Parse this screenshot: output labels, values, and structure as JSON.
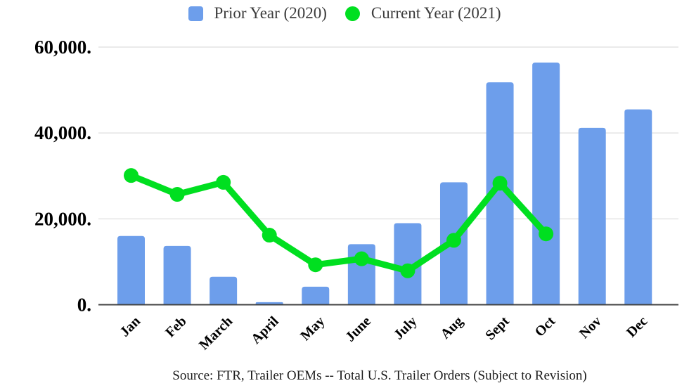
{
  "chart_data": {
    "type": "combo-bar-line",
    "title": "",
    "xlabel": "",
    "ylabel": "",
    "categories": [
      "Jan",
      "Feb",
      "March",
      "April",
      "May",
      "June",
      "July",
      "Aug",
      "Sept",
      "Oct",
      "Nov",
      "Dec"
    ],
    "series": [
      {
        "name": "Prior Year (2020)",
        "type": "bar",
        "color": "#6d9eeb",
        "values": [
          16000,
          13700,
          6500,
          600,
          4200,
          14100,
          19000,
          28500,
          51800,
          56400,
          41200,
          45500
        ]
      },
      {
        "name": "Current Year (2021)",
        "type": "line",
        "color": "#00df20",
        "values": [
          30100,
          25700,
          28500,
          16200,
          9300,
          10700,
          7900,
          15000,
          28300,
          16500,
          null,
          null
        ]
      }
    ],
    "ylim": [
      0,
      60000
    ],
    "yticks": {
      "values": [
        0,
        20000,
        40000,
        60000
      ],
      "labels": [
        "0.",
        "20,000.",
        "40,000.",
        "60,000."
      ]
    },
    "grid": true,
    "legend_position": "top",
    "colors": {
      "gridline": "#d5d5d5",
      "axis": "#424242",
      "tick_text": "#000000"
    },
    "source_note": "Source: FTR, Trailer OEMs -- Total U.S. Trailer Orders (Subject to Revision)"
  }
}
